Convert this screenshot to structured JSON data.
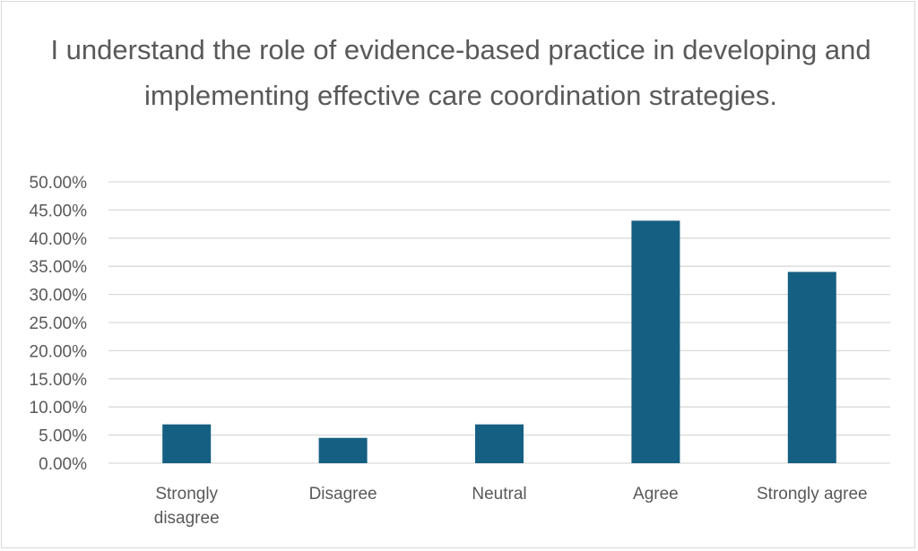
{
  "chart_data": {
    "type": "bar",
    "title": "I understand the role of evidence-based practice in developing and implementing effective care coordination strategies.",
    "categories": [
      "Strongly disagree",
      "Disagree",
      "Neutral",
      "Agree",
      "Strongly agree"
    ],
    "category_lines": [
      [
        "Strongly",
        "disagree"
      ],
      [
        "Disagree"
      ],
      [
        "Neutral"
      ],
      [
        "Agree"
      ],
      [
        "Strongly agree"
      ]
    ],
    "values": [
      6.9,
      4.5,
      6.9,
      43.1,
      34.0
    ],
    "ylim": [
      0,
      50
    ],
    "yticks": [
      "0.00%",
      "5.00%",
      "10.00%",
      "15.00%",
      "20.00%",
      "25.00%",
      "30.00%",
      "35.00%",
      "40.00%",
      "45.00%",
      "50.00%"
    ],
    "ytick_values": [
      0,
      5,
      10,
      15,
      20,
      25,
      30,
      35,
      40,
      45,
      50
    ],
    "grid": true,
    "legend": "none",
    "bar_color": "#155f82",
    "grid_color": "#d9d9d9"
  }
}
